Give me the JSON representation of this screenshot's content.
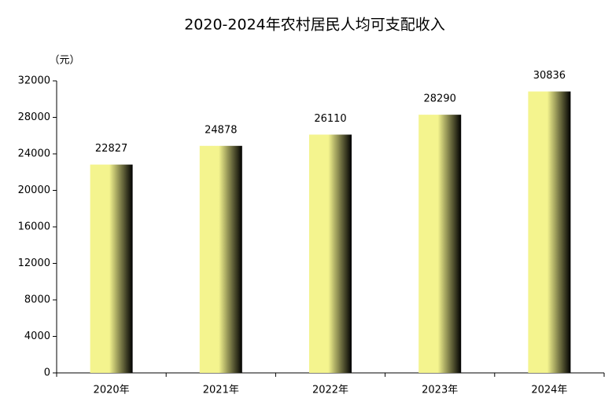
{
  "chart_data": {
    "type": "bar",
    "title": "2020-2024年农村居民人均可支配收入",
    "y_label": "（元）",
    "categories": [
      "2020年",
      "2021年",
      "2022年",
      "2023年",
      "2024年"
    ],
    "values": [
      22827,
      24878,
      26110,
      28290,
      30836
    ],
    "color": "#f4f48e",
    "ylim": [
      0,
      32000
    ],
    "yticks": [
      0,
      4000,
      8000,
      12000,
      16000,
      20000,
      24000,
      28000,
      32000
    ],
    "grid": false
  }
}
